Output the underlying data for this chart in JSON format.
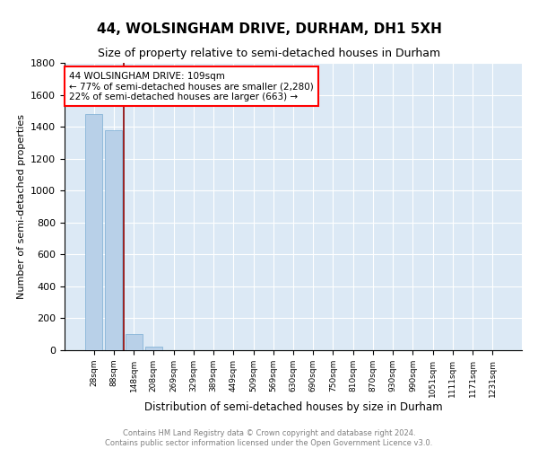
{
  "title": "44, WOLSINGHAM DRIVE, DURHAM, DH1 5XH",
  "subtitle": "Size of property relative to semi-detached houses in Durham",
  "xlabel": "Distribution of semi-detached houses by size in Durham",
  "ylabel": "Number of semi-detached properties",
  "categories": [
    "28sqm",
    "88sqm",
    "148sqm",
    "208sqm",
    "269sqm",
    "329sqm",
    "389sqm",
    "449sqm",
    "509sqm",
    "569sqm",
    "630sqm",
    "690sqm",
    "750sqm",
    "810sqm",
    "870sqm",
    "930sqm",
    "990sqm",
    "1051sqm",
    "1111sqm",
    "1171sqm",
    "1231sqm"
  ],
  "values": [
    1480,
    1380,
    100,
    25,
    0,
    0,
    0,
    0,
    0,
    0,
    0,
    0,
    0,
    0,
    0,
    0,
    0,
    0,
    0,
    0,
    0
  ],
  "bar_color": "#b8d0e8",
  "bar_edge_color": "#7aadd4",
  "ylim": [
    0,
    1800
  ],
  "red_line_x": 1.5,
  "annotation_text_line1": "44 WOLSINGHAM DRIVE: 109sqm",
  "annotation_text_line2": "← 77% of semi-detached houses are smaller (2,280)",
  "annotation_text_line3": "22% of semi-detached houses are larger (663) →",
  "footer_line1": "Contains HM Land Registry data © Crown copyright and database right 2024.",
  "footer_line2": "Contains public sector information licensed under the Open Government Licence v3.0.",
  "plot_background": "#dce9f5",
  "grid_color": "white",
  "title_fontsize": 11,
  "subtitle_fontsize": 9,
  "tick_fontsize": 6.5,
  "ylabel_fontsize": 8,
  "xlabel_fontsize": 8.5,
  "footer_fontsize": 6
}
